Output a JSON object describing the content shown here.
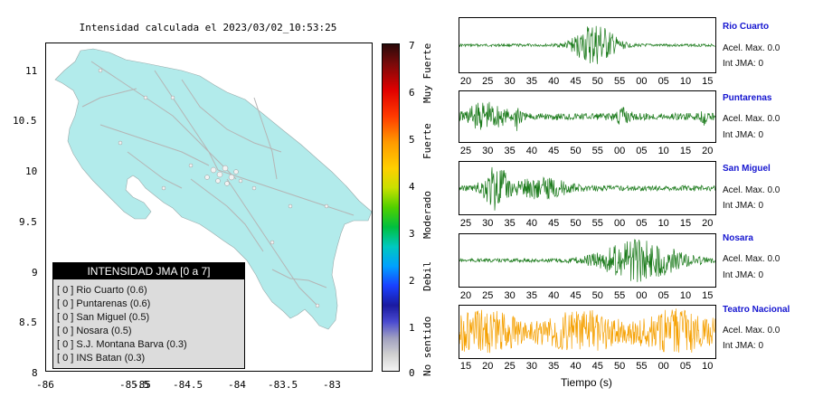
{
  "map": {
    "title": "Intensidad calculada el 2023/03/02_10:53:25",
    "land_color": "#b2ebeb",
    "x_ticks": [
      "-86",
      "-85.5",
      "-85",
      "-84.5",
      "-84",
      "-83.5",
      "-83"
    ],
    "y_ticks": [
      "11",
      "10.5",
      "10",
      "9.5",
      "9",
      "8.5",
      "8"
    ]
  },
  "legend": {
    "header": "INTENSIDAD JMA [0 a 7]",
    "items": [
      "[ 0 ]  Rio Cuarto (0.6)",
      "[ 0 ]  Puntarenas (0.6)",
      "[ 0 ]  San Miguel (0.5)",
      "[ 0 ]  Nosara (0.5)",
      "[ 0 ]  S.J. Montana Barva (0.3)",
      "[ 0 ]  INS Batan (0.3)"
    ]
  },
  "scale": {
    "ticks": [
      "7",
      "6",
      "5",
      "4",
      "3",
      "2",
      "1",
      "0"
    ],
    "labels": [
      "Muy Fuerte",
      "Fuerte",
      "Moderado",
      "Debil",
      "No sentido"
    ]
  },
  "stations": [
    {
      "name": "Rio Cuarto",
      "accel": "Acel. Max. 0.0",
      "jma": "Int JMA: 0",
      "color": "#1a7a1a",
      "ticks": [
        "20",
        "25",
        "30",
        "35",
        "40",
        "45",
        "50",
        "55",
        "00",
        "05",
        "10",
        "15"
      ]
    },
    {
      "name": "Puntarenas",
      "accel": "Acel. Max. 0.0",
      "jma": "Int JMA: 0",
      "color": "#1a7a1a",
      "ticks": [
        "25",
        "30",
        "35",
        "40",
        "45",
        "50",
        "55",
        "00",
        "05",
        "10",
        "15",
        "20"
      ]
    },
    {
      "name": "San Miguel",
      "accel": "Acel. Max. 0.0",
      "jma": "Int JMA: 0",
      "color": "#1a7a1a",
      "ticks": [
        "25",
        "30",
        "35",
        "40",
        "45",
        "50",
        "55",
        "00",
        "05",
        "10",
        "15",
        "20"
      ]
    },
    {
      "name": "Nosara",
      "accel": "Acel. Max. 0.0",
      "jma": "Int JMA: 0",
      "color": "#1a7a1a",
      "ticks": [
        "20",
        "25",
        "30",
        "35",
        "40",
        "45",
        "50",
        "55",
        "00",
        "05",
        "10",
        "15"
      ]
    },
    {
      "name": "Teatro Nacional",
      "accel": "Acel. Max. 0.0",
      "jma": "Int JMA: 0",
      "color": "#f5a000",
      "ticks": [
        "15",
        "20",
        "25",
        "30",
        "35",
        "40",
        "45",
        "50",
        "55",
        "00",
        "05",
        "10"
      ]
    }
  ],
  "time_axis_label": "Tiempo (s)"
}
